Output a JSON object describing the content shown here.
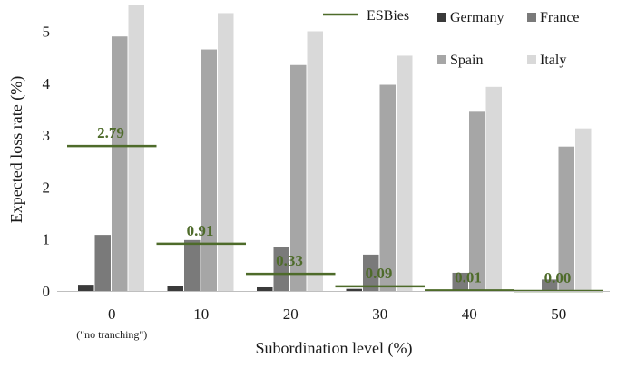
{
  "chart_data": {
    "type": "bar",
    "title": "",
    "xlabel": "Subordination level (%)",
    "ylabel": "Expected loss rate (%)",
    "ylim": [
      0,
      5.5
    ],
    "yticks": [
      "0",
      "1",
      "2",
      "3",
      "4",
      "5"
    ],
    "categories": [
      "0",
      "10",
      "20",
      "30",
      "40",
      "50"
    ],
    "category_sublabels": [
      "(\"no tranching\")",
      "",
      "",
      "",
      "",
      ""
    ],
    "series": [
      {
        "name": "Germany",
        "color": "#3a3a3a",
        "values": [
          0.12,
          0.1,
          0.07,
          0.04,
          0.02,
          0.01
        ]
      },
      {
        "name": "France",
        "color": "#7a7a7a",
        "values": [
          1.08,
          0.98,
          0.85,
          0.7,
          0.35,
          0.22
        ]
      },
      {
        "name": "Spain",
        "color": "#a6a6a6",
        "values": [
          4.9,
          4.65,
          4.35,
          3.97,
          3.45,
          2.78
        ]
      },
      {
        "name": "Italy",
        "color": "#d9d9d9",
        "values": [
          5.5,
          5.35,
          5.0,
          4.53,
          3.93,
          3.13
        ]
      }
    ],
    "line_series": {
      "name": "ESBies",
      "color": "#4e6b2a",
      "values": [
        2.79,
        0.91,
        0.33,
        0.09,
        0.01,
        0.0
      ],
      "labels": [
        "2.79",
        "0.91",
        "0.33",
        "0.09",
        "0.01",
        "0.00"
      ]
    },
    "legend_position": "top-right",
    "grid": false
  }
}
